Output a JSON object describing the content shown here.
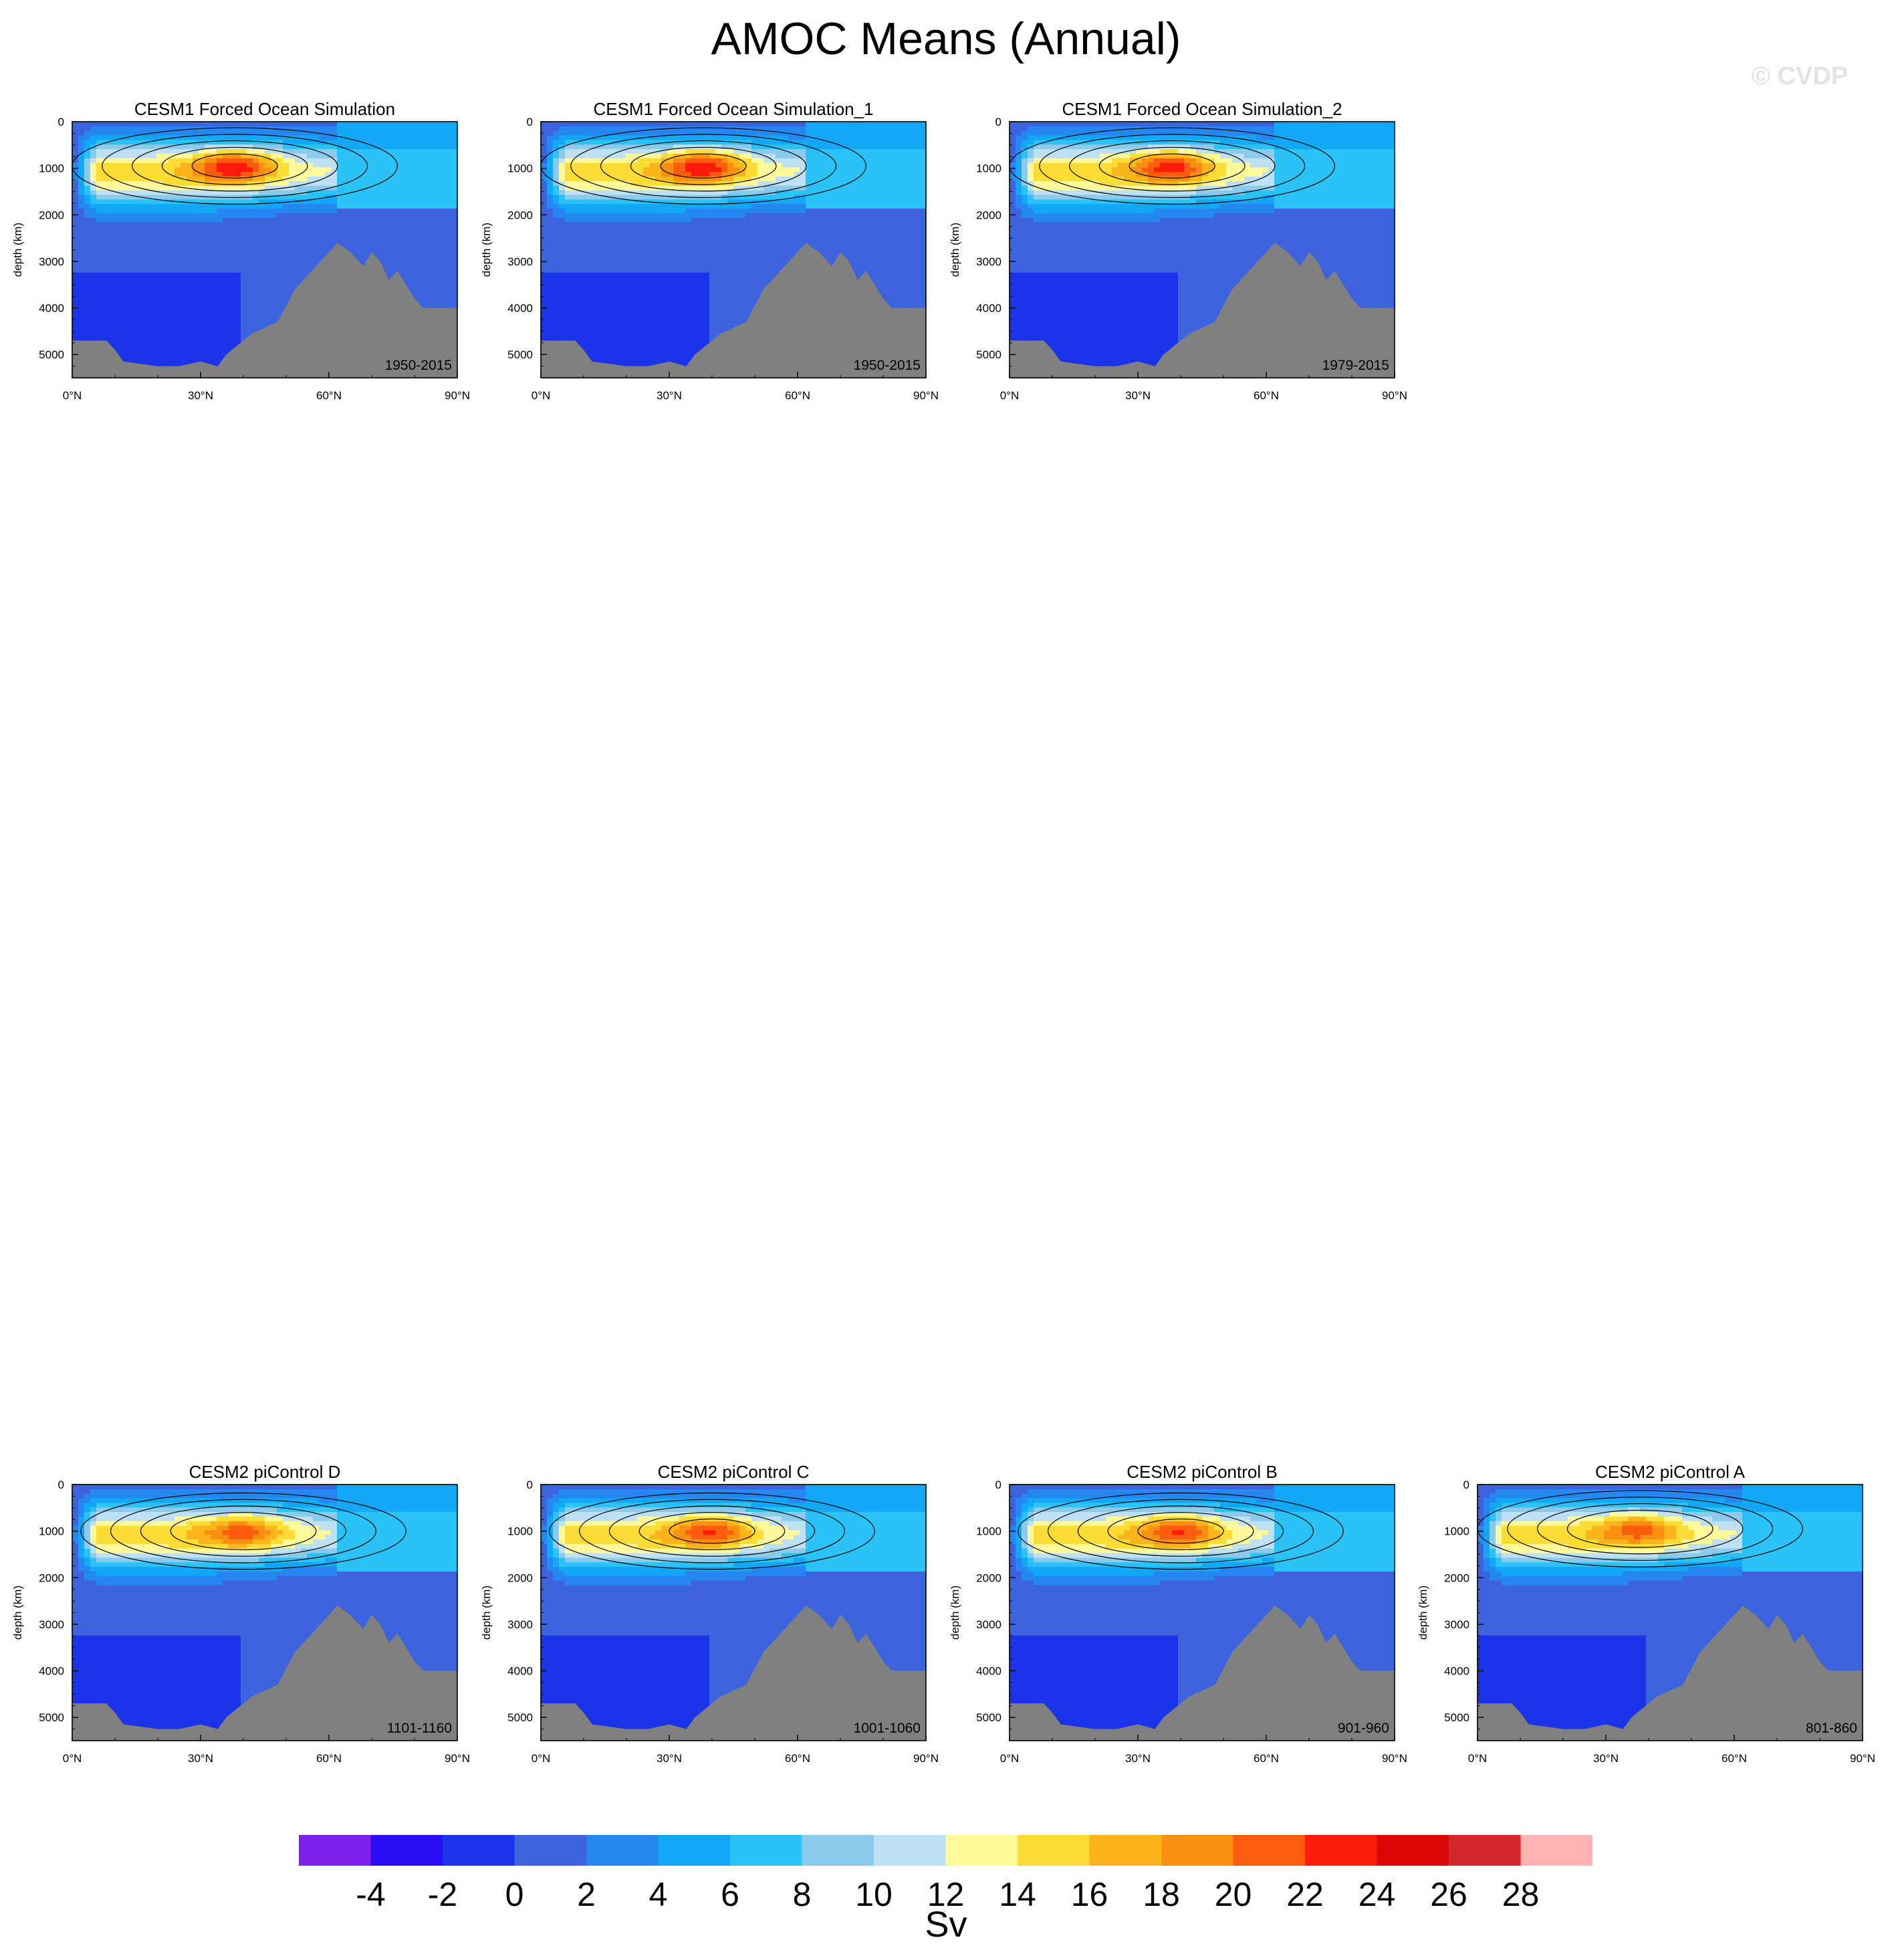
{
  "page": {
    "title": "AMOC Means (Annual)",
    "watermark": "© CVDP"
  },
  "colors": {
    "land": "#808080",
    "contour_line": "#000000",
    "levels": [
      "#7f22ee",
      "#2a0ef5",
      "#1b34e9",
      "#3d63de",
      "#2587f2",
      "#12a8f7",
      "#2bc2f7",
      "#8ccaeb",
      "#bde0f2",
      "#fff99b",
      "#fedc36",
      "#fbb51b",
      "#fb8f12",
      "#fc5c0d",
      "#fe1b0a",
      "#dd0606",
      "#d3282b",
      "#ffb3b3"
    ]
  },
  "chart_data": [
    {
      "type": "heatmap",
      "title": "CESM1 Forced Ocean Simulation",
      "period": "1950-2015",
      "ylabel": "depth (km)",
      "x_ticks": [
        "0°N",
        "30°N",
        "60°N",
        "90°N"
      ],
      "y_ticks": [
        "0",
        "1000",
        "2000",
        "3000",
        "4000",
        "5000"
      ],
      "xlim": [
        0,
        90
      ],
      "ylim": [
        5500,
        0
      ],
      "core": {
        "lat": 38,
        "depth": 950,
        "max_sv": 25
      },
      "bathymetry_profile": [
        [
          0,
          4700
        ],
        [
          8,
          4700
        ],
        [
          10,
          4900
        ],
        [
          12,
          5150
        ],
        [
          16,
          5200
        ],
        [
          20,
          5250
        ],
        [
          25,
          5250
        ],
        [
          30,
          5150
        ],
        [
          34,
          5250
        ],
        [
          36,
          5000
        ],
        [
          42,
          4550
        ],
        [
          48,
          4300
        ],
        [
          52,
          3600
        ],
        [
          57,
          3100
        ],
        [
          60,
          2800
        ],
        [
          62,
          2600
        ],
        [
          65,
          2800
        ],
        [
          68,
          3100
        ],
        [
          70,
          2800
        ],
        [
          72,
          3000
        ],
        [
          74,
          3400
        ],
        [
          76,
          3200
        ],
        [
          78,
          3500
        ],
        [
          80,
          3800
        ],
        [
          82,
          4000
        ],
        [
          86,
          4000
        ],
        [
          90,
          4000
        ]
      ]
    },
    {
      "type": "heatmap",
      "title": "CESM1 Forced Ocean Simulation_1",
      "period": "1950-2015",
      "ylabel": "depth (km)",
      "x_ticks": [
        "0°N",
        "30°N",
        "60°N",
        "90°N"
      ],
      "y_ticks": [
        "0",
        "1000",
        "2000",
        "3000",
        "4000",
        "5000"
      ],
      "xlim": [
        0,
        90
      ],
      "ylim": [
        5500,
        0
      ],
      "core": {
        "lat": 38,
        "depth": 950,
        "max_sv": 25
      },
      "bathymetry_profile": [
        [
          0,
          4700
        ],
        [
          8,
          4700
        ],
        [
          10,
          4900
        ],
        [
          12,
          5150
        ],
        [
          16,
          5200
        ],
        [
          20,
          5250
        ],
        [
          25,
          5250
        ],
        [
          30,
          5150
        ],
        [
          34,
          5250
        ],
        [
          36,
          5000
        ],
        [
          42,
          4550
        ],
        [
          48,
          4300
        ],
        [
          52,
          3600
        ],
        [
          57,
          3100
        ],
        [
          60,
          2800
        ],
        [
          62,
          2600
        ],
        [
          65,
          2800
        ],
        [
          68,
          3100
        ],
        [
          70,
          2800
        ],
        [
          72,
          3000
        ],
        [
          74,
          3400
        ],
        [
          76,
          3200
        ],
        [
          78,
          3500
        ],
        [
          80,
          3800
        ],
        [
          82,
          4000
        ],
        [
          86,
          4000
        ],
        [
          90,
          4000
        ]
      ]
    },
    {
      "type": "heatmap",
      "title": "CESM1 Forced Ocean Simulation_2",
      "period": "1979-2015",
      "ylabel": "depth (km)",
      "x_ticks": [
        "0°N",
        "30°N",
        "60°N",
        "90°N"
      ],
      "y_ticks": [
        "0",
        "1000",
        "2000",
        "3000",
        "4000",
        "5000"
      ],
      "xlim": [
        0,
        90
      ],
      "ylim": [
        5500,
        0
      ],
      "core": {
        "lat": 38,
        "depth": 950,
        "max_sv": 24
      },
      "bathymetry_profile": [
        [
          0,
          4700
        ],
        [
          8,
          4700
        ],
        [
          10,
          4900
        ],
        [
          12,
          5150
        ],
        [
          16,
          5200
        ],
        [
          20,
          5250
        ],
        [
          25,
          5250
        ],
        [
          30,
          5150
        ],
        [
          34,
          5250
        ],
        [
          36,
          5000
        ],
        [
          42,
          4550
        ],
        [
          48,
          4300
        ],
        [
          52,
          3600
        ],
        [
          57,
          3100
        ],
        [
          60,
          2800
        ],
        [
          62,
          2600
        ],
        [
          65,
          2800
        ],
        [
          68,
          3100
        ],
        [
          70,
          2800
        ],
        [
          72,
          3000
        ],
        [
          74,
          3400
        ],
        [
          76,
          3200
        ],
        [
          78,
          3500
        ],
        [
          80,
          3800
        ],
        [
          82,
          4000
        ],
        [
          86,
          4000
        ],
        [
          90,
          4000
        ]
      ]
    },
    {
      "type": "heatmap",
      "title": "CESM2 piControl D",
      "period": "1101-1160",
      "ylabel": "depth (km)",
      "x_ticks": [
        "0°N",
        "30°N",
        "60°N",
        "90°N"
      ],
      "y_ticks": [
        "0",
        "1000",
        "2000",
        "3000",
        "4000",
        "5000"
      ],
      "xlim": [
        0,
        90
      ],
      "ylim": [
        5500,
        0
      ],
      "core": {
        "lat": 40,
        "depth": 1000,
        "max_sv": 22
      },
      "bathymetry_profile": [
        [
          0,
          4700
        ],
        [
          8,
          4700
        ],
        [
          10,
          4900
        ],
        [
          12,
          5150
        ],
        [
          16,
          5200
        ],
        [
          20,
          5250
        ],
        [
          25,
          5250
        ],
        [
          30,
          5150
        ],
        [
          34,
          5250
        ],
        [
          36,
          5000
        ],
        [
          42,
          4550
        ],
        [
          48,
          4300
        ],
        [
          52,
          3600
        ],
        [
          57,
          3100
        ],
        [
          60,
          2800
        ],
        [
          62,
          2600
        ],
        [
          65,
          2800
        ],
        [
          68,
          3100
        ],
        [
          70,
          2800
        ],
        [
          72,
          3000
        ],
        [
          74,
          3400
        ],
        [
          76,
          3200
        ],
        [
          78,
          3500
        ],
        [
          80,
          3800
        ],
        [
          82,
          4000
        ],
        [
          86,
          4000
        ],
        [
          90,
          4000
        ]
      ]
    },
    {
      "type": "heatmap",
      "title": "CESM2 piControl C",
      "period": "1001-1060",
      "ylabel": "depth (km)",
      "x_ticks": [
        "0°N",
        "30°N",
        "60°N",
        "90°N"
      ],
      "y_ticks": [
        "0",
        "1000",
        "2000",
        "3000",
        "4000",
        "5000"
      ],
      "xlim": [
        0,
        90
      ],
      "ylim": [
        5500,
        0
      ],
      "core": {
        "lat": 40,
        "depth": 1000,
        "max_sv": 23
      },
      "bathymetry_profile": [
        [
          0,
          4700
        ],
        [
          8,
          4700
        ],
        [
          10,
          4900
        ],
        [
          12,
          5150
        ],
        [
          16,
          5200
        ],
        [
          20,
          5250
        ],
        [
          25,
          5250
        ],
        [
          30,
          5150
        ],
        [
          34,
          5250
        ],
        [
          36,
          5000
        ],
        [
          42,
          4550
        ],
        [
          48,
          4300
        ],
        [
          52,
          3600
        ],
        [
          57,
          3100
        ],
        [
          60,
          2800
        ],
        [
          62,
          2600
        ],
        [
          65,
          2800
        ],
        [
          68,
          3100
        ],
        [
          70,
          2800
        ],
        [
          72,
          3000
        ],
        [
          74,
          3400
        ],
        [
          76,
          3200
        ],
        [
          78,
          3500
        ],
        [
          80,
          3800
        ],
        [
          82,
          4000
        ],
        [
          86,
          4000
        ],
        [
          90,
          4000
        ]
      ]
    },
    {
      "type": "heatmap",
      "title": "CESM2 piControl B",
      "period": "901-960",
      "ylabel": "depth (km)",
      "x_ticks": [
        "0°N",
        "30°N",
        "60°N",
        "90°N"
      ],
      "y_ticks": [
        "0",
        "1000",
        "2000",
        "3000",
        "4000",
        "5000"
      ],
      "xlim": [
        0,
        90
      ],
      "ylim": [
        5500,
        0
      ],
      "core": {
        "lat": 40,
        "depth": 1000,
        "max_sv": 23
      },
      "bathymetry_profile": [
        [
          0,
          4700
        ],
        [
          8,
          4700
        ],
        [
          10,
          4900
        ],
        [
          12,
          5150
        ],
        [
          16,
          5200
        ],
        [
          20,
          5250
        ],
        [
          25,
          5250
        ],
        [
          30,
          5150
        ],
        [
          34,
          5250
        ],
        [
          36,
          5000
        ],
        [
          42,
          4550
        ],
        [
          48,
          4300
        ],
        [
          52,
          3600
        ],
        [
          57,
          3100
        ],
        [
          60,
          2800
        ],
        [
          62,
          2600
        ],
        [
          65,
          2800
        ],
        [
          68,
          3100
        ],
        [
          70,
          2800
        ],
        [
          72,
          3000
        ],
        [
          74,
          3400
        ],
        [
          76,
          3200
        ],
        [
          78,
          3500
        ],
        [
          80,
          3800
        ],
        [
          82,
          4000
        ],
        [
          86,
          4000
        ],
        [
          90,
          4000
        ]
      ]
    },
    {
      "type": "heatmap",
      "title": "CESM2 piControl A",
      "period": "801-860",
      "ylabel": "depth (km)",
      "x_ticks": [
        "0°N",
        "30°N",
        "60°N",
        "90°N"
      ],
      "y_ticks": [
        "0",
        "1000",
        "2000",
        "3000",
        "4000",
        "5000"
      ],
      "xlim": [
        0,
        90
      ],
      "ylim": [
        5500,
        0
      ],
      "core": {
        "lat": 38,
        "depth": 950,
        "max_sv": 22
      },
      "bathymetry_profile": [
        [
          0,
          4700
        ],
        [
          8,
          4700
        ],
        [
          10,
          4900
        ],
        [
          12,
          5150
        ],
        [
          16,
          5200
        ],
        [
          20,
          5250
        ],
        [
          25,
          5250
        ],
        [
          30,
          5150
        ],
        [
          34,
          5250
        ],
        [
          36,
          5000
        ],
        [
          42,
          4550
        ],
        [
          48,
          4300
        ],
        [
          52,
          3600
        ],
        [
          57,
          3100
        ],
        [
          60,
          2800
        ],
        [
          62,
          2600
        ],
        [
          65,
          2800
        ],
        [
          68,
          3100
        ],
        [
          70,
          2800
        ],
        [
          72,
          3000
        ],
        [
          74,
          3400
        ],
        [
          76,
          3200
        ],
        [
          78,
          3500
        ],
        [
          80,
          3800
        ],
        [
          82,
          4000
        ],
        [
          86,
          4000
        ],
        [
          90,
          4000
        ]
      ]
    }
  ],
  "colorbar": {
    "labels": [
      "-4",
      "-2",
      "0",
      "2",
      "4",
      "6",
      "8",
      "10",
      "12",
      "14",
      "16",
      "18",
      "20",
      "22",
      "24",
      "26",
      "28"
    ],
    "units": "Sv"
  }
}
